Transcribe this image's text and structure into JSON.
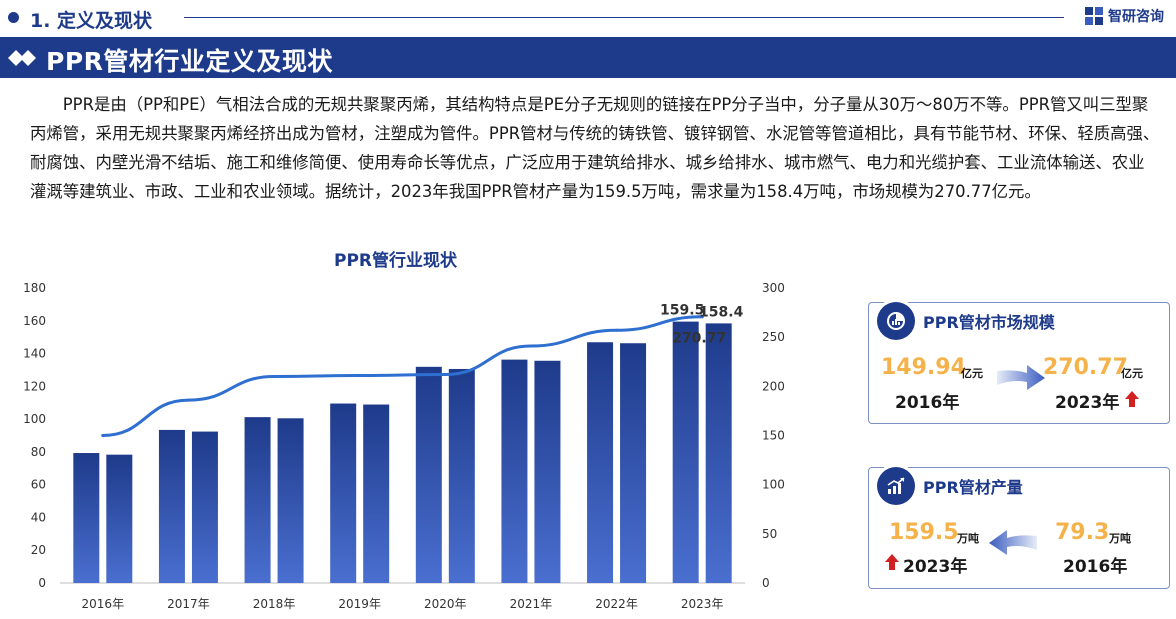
{
  "header": {
    "section_title": "1. 定义及现状",
    "brand_name": "智研咨询"
  },
  "banner": {
    "title": "PPR管材行业定义及现状"
  },
  "paragraph": "PPR是由（PP和PE）气相法合成的无规共聚聚丙烯，其结构特点是PE分子无规则的链接在PP分子当中，分子量从30万～80万不等。PPR管又叫三型聚丙烯管，采用无规共聚聚丙烯经挤出成为管材，注塑成为管件。PPR管材与传统的铸铁管、镀锌钢管、水泥管等管道相比，具有节能节材、环保、轻质高强、耐腐蚀、内壁光滑不结垢、施工和维修简便、使用寿命长等优点，广泛应用于建筑给排水、城乡给排水、城市燃气、电力和光缆护套、工业流体输送、农业灌溉等建筑业、市政、工业和农业领域。据统计，2023年我国PPR管材产量为159.5万吨，需求量为158.4万吨，市场规模为270.77亿元。",
  "chart_data": {
    "type": "bar",
    "title": "PPR管行业现状",
    "categories": [
      "2016年",
      "2017年",
      "2018年",
      "2019年",
      "2020年",
      "2021年",
      "2022年",
      "2023年"
    ],
    "series": [
      {
        "name": "",
        "axis": "left",
        "type": "bar",
        "values": [
          79.3,
          93.4,
          101.2,
          109.5,
          131.9,
          136.3,
          146.9,
          159.5
        ]
      },
      {
        "name": "",
        "axis": "left",
        "type": "bar",
        "values": [
          78.3,
          92.4,
          100.5,
          108.9,
          130.6,
          135.6,
          146.3,
          158.4
        ]
      },
      {
        "name": "",
        "axis": "right",
        "type": "line",
        "values": [
          149.94,
          186.0,
          210.0,
          211.0,
          212.0,
          241.0,
          257.0,
          270.77
        ]
      }
    ],
    "y_left": {
      "min": 0,
      "max": 180,
      "ticks": [
        0,
        20,
        40,
        60,
        80,
        100,
        120,
        140,
        160,
        180
      ]
    },
    "y_right": {
      "min": 0,
      "max": 300,
      "ticks": [
        0,
        50,
        100,
        150,
        200,
        250,
        300
      ]
    },
    "data_labels": [
      "159.5",
      "158.4",
      "270.77"
    ],
    "grid": false,
    "colors": {
      "bar_dark": "#1e3a8a",
      "bar_light": "#3a5bc0",
      "line": "#2e6fd0"
    }
  },
  "market_card": {
    "title": "PPR管材市场规模",
    "left_value": "149.94",
    "left_unit": "亿元",
    "left_year": "2016年",
    "right_value": "270.77",
    "right_unit": "亿元",
    "right_year": "2023年"
  },
  "production_card": {
    "title": "PPR管材产量",
    "left_value": "159.5",
    "left_unit": "万吨",
    "left_year": "2023年",
    "right_value": "79.3",
    "right_unit": "万吨",
    "right_year": "2016年"
  },
  "colors": {
    "brand": "#1e3a8a",
    "accent_value": "#f6b24a",
    "up_arrow": "#d32020"
  },
  "icons": [
    "circle-bullet-icon",
    "brand-logo-icon",
    "double-chevron-icon",
    "pie-chart-icon",
    "bar-growth-icon",
    "right-arrow-icon",
    "left-arrow-icon",
    "up-arrow-icon"
  ]
}
